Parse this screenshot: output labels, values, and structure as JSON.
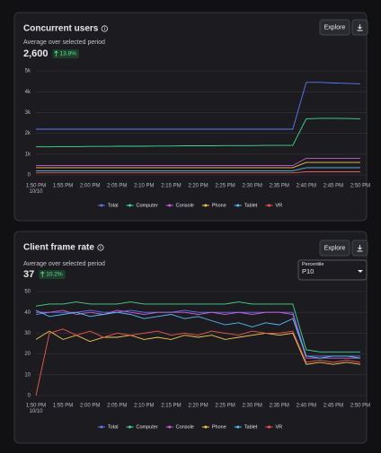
{
  "chart_data": [
    {
      "type": "line",
      "title": "Concurrent users",
      "subtitle": "Average over selected period",
      "summary_value": "2,600",
      "change": "13.8%",
      "explore": "Explore",
      "categories": [
        "1:50 PM",
        null,
        "1:55 PM",
        null,
        "2:00 PM",
        null,
        "2:05 PM",
        null,
        "2:10 PM",
        null,
        "2:15 PM",
        null,
        "2:20 PM",
        null,
        "2:25 PM",
        null,
        "2:30 PM",
        null,
        "2:35 PM",
        null,
        "2:40 PM",
        null,
        "2:45 PM",
        null,
        "2:50 PM"
      ],
      "x_date_label": "10/10",
      "ylim": [
        0,
        5000
      ],
      "yticks": [
        0,
        {
          "value": 1000,
          "label": "1k"
        },
        {
          "value": 2000,
          "label": "2k"
        },
        {
          "value": 3000,
          "label": "3k"
        },
        {
          "value": 4000,
          "label": "4k"
        },
        {
          "value": 5000,
          "label": "5k"
        }
      ],
      "grid": true,
      "series": [
        {
          "name": "Total",
          "color": "#5b7cf5",
          "values": [
            2200,
            2200,
            2200,
            2200,
            2200,
            2200,
            2200,
            2200,
            2200,
            2200,
            2200,
            2200,
            2200,
            2200,
            2200,
            2200,
            2200,
            2200,
            2200,
            2200,
            4450,
            4450,
            4420,
            4400,
            4380
          ]
        },
        {
          "name": "Computer",
          "color": "#3fdc8a",
          "values": [
            1350,
            1350,
            1360,
            1360,
            1370,
            1370,
            1380,
            1380,
            1380,
            1390,
            1390,
            1400,
            1400,
            1400,
            1410,
            1410,
            1410,
            1420,
            1420,
            1420,
            2700,
            2720,
            2720,
            2710,
            2700
          ]
        },
        {
          "name": "Console",
          "color": "#d45ad8",
          "values": [
            450,
            450,
            450,
            450,
            450,
            450,
            450,
            450,
            450,
            450,
            450,
            450,
            450,
            450,
            450,
            450,
            450,
            450,
            450,
            450,
            800,
            800,
            800,
            800,
            800
          ]
        },
        {
          "name": "Phone",
          "color": "#f2c94c",
          "values": [
            350,
            350,
            350,
            350,
            350,
            350,
            350,
            350,
            350,
            350,
            350,
            350,
            350,
            350,
            350,
            350,
            350,
            350,
            350,
            350,
            600,
            600,
            600,
            600,
            600
          ]
        },
        {
          "name": "Tablet",
          "color": "#4fc3f7",
          "values": [
            200,
            200,
            200,
            200,
            200,
            200,
            200,
            200,
            200,
            200,
            200,
            200,
            200,
            200,
            200,
            200,
            200,
            200,
            200,
            200,
            350,
            350,
            350,
            350,
            350
          ]
        },
        {
          "name": "VR",
          "color": "#f2594b",
          "values": [
            100,
            100,
            100,
            100,
            100,
            100,
            100,
            100,
            100,
            100,
            100,
            100,
            100,
            100,
            100,
            100,
            100,
            100,
            100,
            100,
            150,
            150,
            150,
            150,
            150
          ]
        }
      ]
    },
    {
      "type": "line",
      "title": "Client frame rate",
      "subtitle": "Average over selected period",
      "summary_value": "37",
      "change": "10.2%",
      "explore": "Explore",
      "dropdown_label": "Percentile",
      "dropdown_value": "P10",
      "categories": [
        "1:50 PM",
        null,
        "1:55 PM",
        null,
        "2:00 PM",
        null,
        "2:05 PM",
        null,
        "2:10 PM",
        null,
        "2:15 PM",
        null,
        "2:20 PM",
        null,
        "2:25 PM",
        null,
        "2:30 PM",
        null,
        "2:35 PM",
        null,
        "2:40 PM",
        null,
        "2:45 PM",
        null,
        "2:50 PM"
      ],
      "x_date_label": "10/10",
      "ylim": [
        0,
        50
      ],
      "yticks": [
        0,
        10,
        20,
        30,
        40,
        50
      ],
      "grid": true,
      "series": [
        {
          "name": "Total",
          "color": "#5b7cf5",
          "values": [
            39,
            40,
            40,
            40,
            41,
            40,
            40,
            41,
            40,
            40,
            40,
            41,
            40,
            40,
            40,
            40,
            40,
            40,
            40,
            40,
            19,
            19,
            19,
            19,
            19
          ]
        },
        {
          "name": "Computer",
          "color": "#3fdc8a",
          "values": [
            43,
            44,
            44,
            45,
            44,
            44,
            44,
            45,
            44,
            44,
            44,
            44,
            44,
            44,
            44,
            45,
            44,
            44,
            44,
            44,
            22,
            21,
            21,
            21,
            21
          ]
        },
        {
          "name": "Console",
          "color": "#d45ad8",
          "values": [
            40,
            40,
            41,
            39,
            40,
            39,
            41,
            40,
            39,
            40,
            40,
            40,
            39,
            40,
            39,
            40,
            39,
            40,
            40,
            39,
            18,
            18,
            18,
            18,
            18
          ]
        },
        {
          "name": "Phone",
          "color": "#f2c94c",
          "values": [
            27,
            31,
            27,
            29,
            26,
            28,
            28,
            29,
            27,
            28,
            27,
            29,
            28,
            29,
            27,
            28,
            29,
            30,
            29,
            30,
            15,
            16,
            15,
            16,
            15
          ]
        },
        {
          "name": "Tablet",
          "color": "#4fc3f7",
          "values": [
            41,
            38,
            39,
            40,
            38,
            39,
            40,
            39,
            37,
            38,
            39,
            37,
            38,
            36,
            34,
            35,
            33,
            35,
            34,
            37,
            19,
            18,
            19,
            19,
            18
          ]
        },
        {
          "name": "VR",
          "color": "#f2594b",
          "values": [
            0,
            30,
            32,
            29,
            31,
            28,
            30,
            29,
            30,
            31,
            29,
            30,
            29,
            31,
            30,
            29,
            31,
            30,
            30,
            31,
            16,
            17,
            16,
            17,
            16
          ]
        }
      ]
    }
  ]
}
